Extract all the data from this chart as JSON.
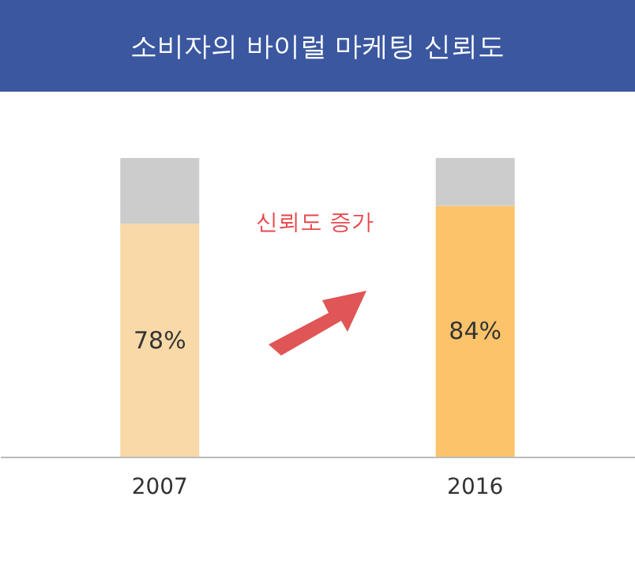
{
  "chart_data": {
    "type": "bar",
    "title": "소비자의 바이럴 마케팅 신뢰도",
    "categories": [
      "2007",
      "2016"
    ],
    "stacked": true,
    "series": [
      {
        "colors": [
          "#f9d9a8",
          "#fdc36a"
        ],
        "values": [
          78,
          84
        ],
        "value_labels": [
          "78%",
          "84%"
        ]
      },
      {
        "color": "#cccccc",
        "values": [
          22,
          16
        ]
      }
    ],
    "annotations": [
      "신뢰도 증가"
    ]
  }
}
